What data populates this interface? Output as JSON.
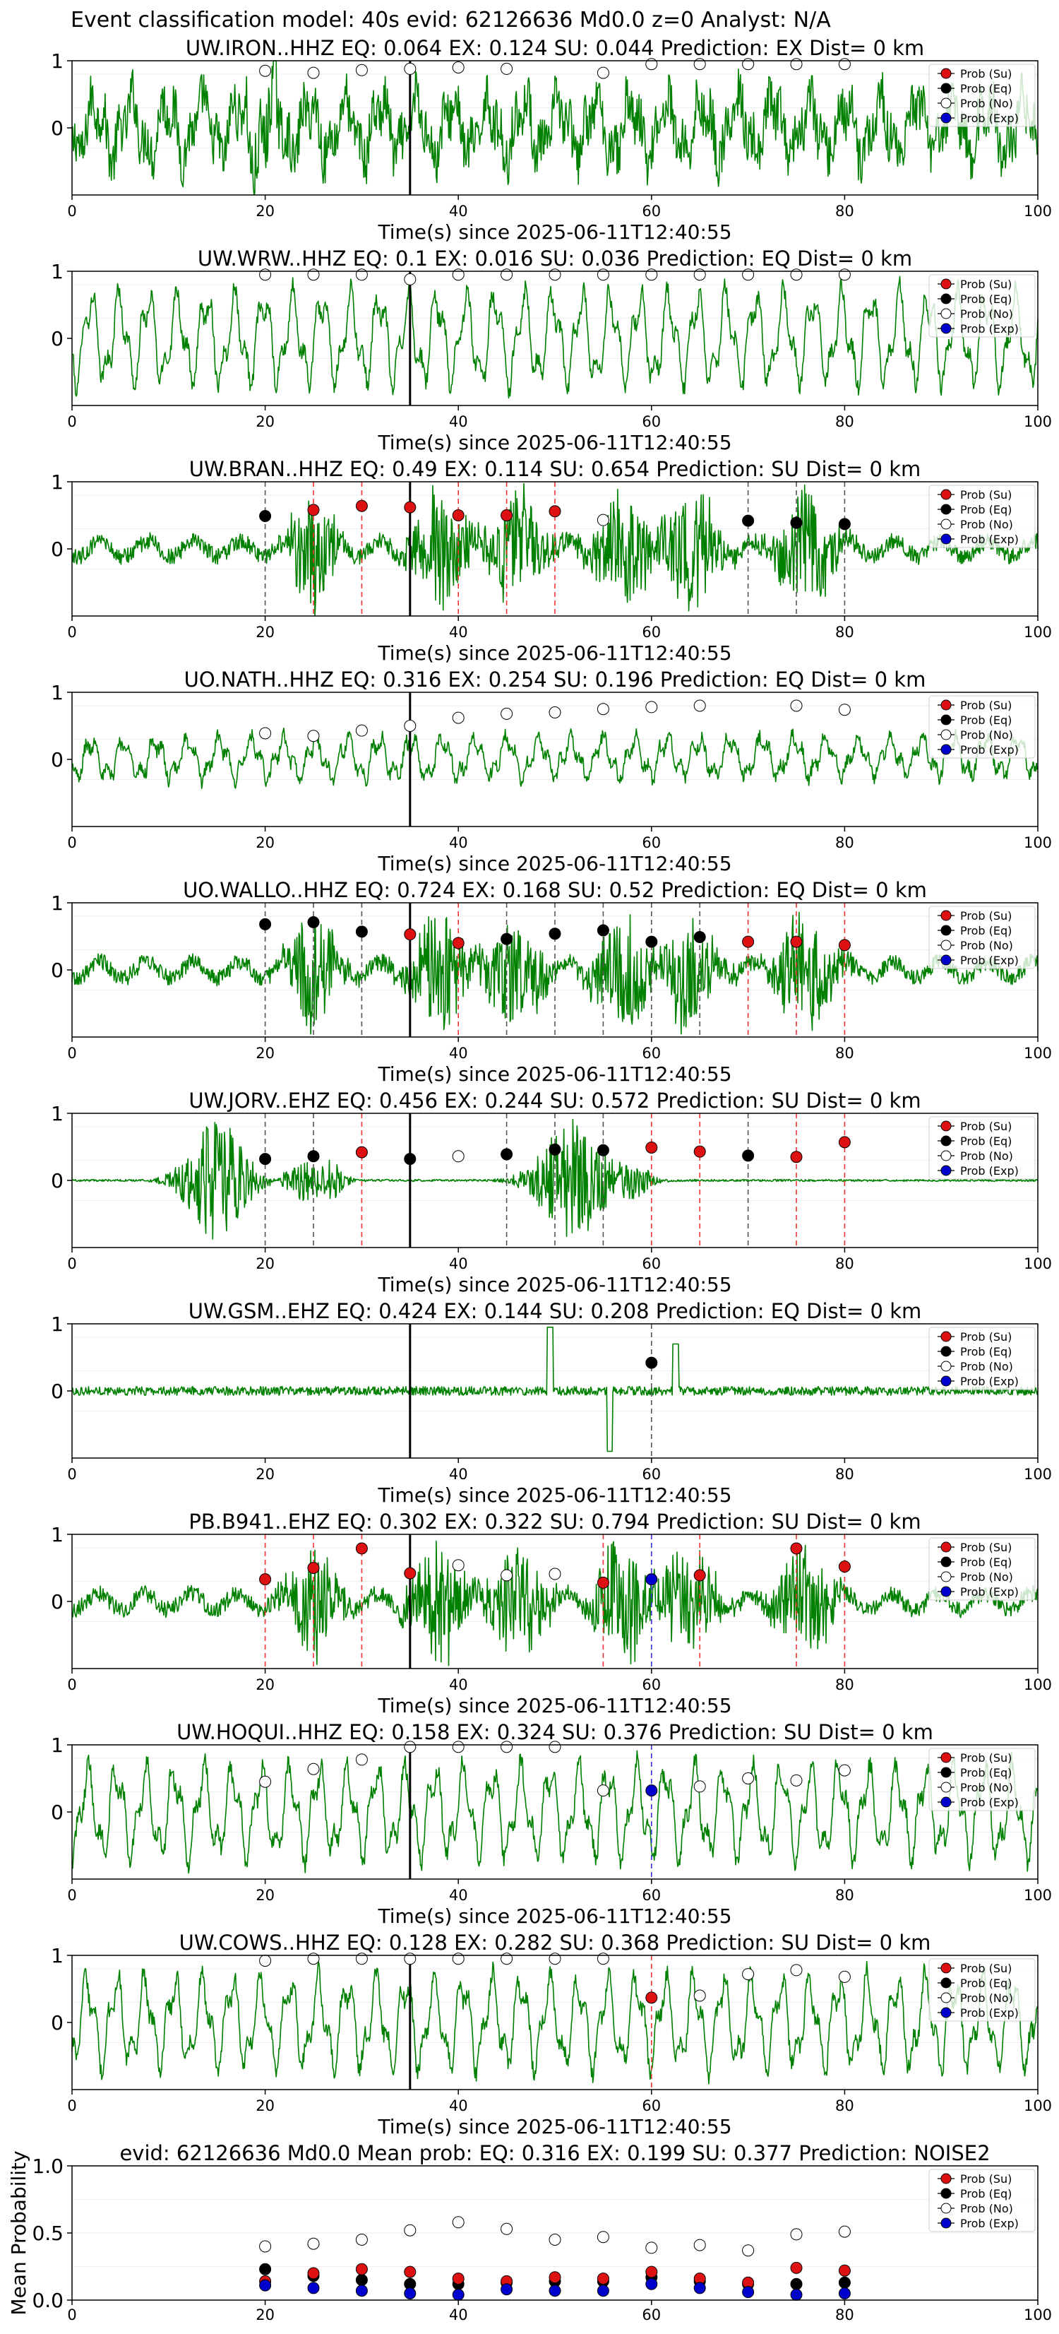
{
  "header": {
    "title": "Event classification model: 40s evid: 62126636 Md0.0 z=0 Analyst: N/A"
  },
  "legend_labels": [
    "Prob (Su)",
    "Prob (Eq)",
    "Prob (No)",
    "Prob (Exp)"
  ],
  "colors": {
    "su": "#dd1111",
    "eq": "#000000",
    "no": "#ffffff",
    "exp": "#0000cc",
    "waveform": "#008000",
    "su_line": "#ee3333",
    "eq_line": "#555555",
    "exp_line": "#3333dd"
  },
  "chart_data": [
    {
      "type": "line",
      "title": "UW.IRON..HHZ   EQ: 0.064  EX: 0.124  SU: 0.044   Prediction: EX    Dist= 0 km",
      "xlabel": "Time(s) since 2025-06-11T12:40:55",
      "xlim": [
        0,
        100
      ],
      "ylim": [
        -1,
        1
      ],
      "xticks": [
        "0",
        "20",
        "40",
        "60",
        "80",
        "100"
      ],
      "yticks": [
        "0",
        "1"
      ],
      "arrival_time": 35,
      "waveform_style": "noisy",
      "probs": [
        {
          "t": 20,
          "p": 0.85,
          "c": "no"
        },
        {
          "t": 25,
          "p": 0.82,
          "c": "no"
        },
        {
          "t": 30,
          "p": 0.86,
          "c": "no"
        },
        {
          "t": 35,
          "p": 0.88,
          "c": "no"
        },
        {
          "t": 40,
          "p": 0.9,
          "c": "no"
        },
        {
          "t": 45,
          "p": 0.88,
          "c": "no"
        },
        {
          "t": 55,
          "p": 0.82,
          "c": "no"
        },
        {
          "t": 60,
          "p": 0.95,
          "c": "no"
        },
        {
          "t": 65,
          "p": 0.95,
          "c": "no"
        },
        {
          "t": 70,
          "p": 0.95,
          "c": "no"
        },
        {
          "t": 75,
          "p": 0.95,
          "c": "no"
        },
        {
          "t": 80,
          "p": 0.95,
          "c": "no"
        }
      ],
      "markers": []
    },
    {
      "type": "line",
      "title": "UW.WRW..HHZ   EQ: 0.1  EX: 0.016  SU: 0.036   Prediction: EQ    Dist= 0 km",
      "xlabel": "Time(s) since 2025-06-11T12:40:55",
      "xlim": [
        0,
        100
      ],
      "ylim": [
        -1,
        1
      ],
      "xticks": [
        "0",
        "20",
        "40",
        "60",
        "80",
        "100"
      ],
      "yticks": [
        "0",
        "1"
      ],
      "arrival_time": 35,
      "waveform_style": "oscillating",
      "probs": [
        {
          "t": 20,
          "p": 0.95,
          "c": "no"
        },
        {
          "t": 25,
          "p": 0.95,
          "c": "no"
        },
        {
          "t": 30,
          "p": 0.95,
          "c": "no"
        },
        {
          "t": 35,
          "p": 0.88,
          "c": "no"
        },
        {
          "t": 40,
          "p": 0.95,
          "c": "no"
        },
        {
          "t": 45,
          "p": 0.95,
          "c": "no"
        },
        {
          "t": 50,
          "p": 0.95,
          "c": "no"
        },
        {
          "t": 55,
          "p": 0.95,
          "c": "no"
        },
        {
          "t": 60,
          "p": 0.95,
          "c": "no"
        },
        {
          "t": 65,
          "p": 0.95,
          "c": "no"
        },
        {
          "t": 70,
          "p": 0.95,
          "c": "no"
        },
        {
          "t": 75,
          "p": 0.95,
          "c": "no"
        },
        {
          "t": 80,
          "p": 0.95,
          "c": "no"
        }
      ],
      "markers": []
    },
    {
      "type": "line",
      "title": "UW.BRAN..HHZ   EQ: 0.49  EX: 0.114  SU: 0.654   Prediction: SU    Dist= 0 km",
      "xlabel": "Time(s) since 2025-06-11T12:40:55",
      "xlim": [
        0,
        100
      ],
      "ylim": [
        -1,
        1
      ],
      "xticks": [
        "0",
        "20",
        "40",
        "60",
        "80",
        "100"
      ],
      "yticks": [
        "0",
        "1"
      ],
      "arrival_time": 35,
      "waveform_style": "bursty",
      "probs": [
        {
          "t": 20,
          "p": 0.49,
          "c": "eq"
        },
        {
          "t": 25,
          "p": 0.58,
          "c": "su"
        },
        {
          "t": 30,
          "p": 0.64,
          "c": "su"
        },
        {
          "t": 35,
          "p": 0.62,
          "c": "su"
        },
        {
          "t": 40,
          "p": 0.5,
          "c": "su"
        },
        {
          "t": 45,
          "p": 0.5,
          "c": "su"
        },
        {
          "t": 50,
          "p": 0.56,
          "c": "su"
        },
        {
          "t": 55,
          "p": 0.43,
          "c": "no"
        },
        {
          "t": 70,
          "p": 0.42,
          "c": "eq"
        },
        {
          "t": 75,
          "p": 0.39,
          "c": "eq"
        },
        {
          "t": 80,
          "p": 0.37,
          "c": "eq"
        }
      ],
      "markers": [
        {
          "t": 20,
          "c": "eq"
        },
        {
          "t": 25,
          "c": "su"
        },
        {
          "t": 30,
          "c": "su"
        },
        {
          "t": 40,
          "c": "su"
        },
        {
          "t": 45,
          "c": "su"
        },
        {
          "t": 50,
          "c": "su"
        },
        {
          "t": 70,
          "c": "eq"
        },
        {
          "t": 75,
          "c": "eq"
        },
        {
          "t": 80,
          "c": "eq"
        }
      ]
    },
    {
      "type": "line",
      "title": "UO.NATH..HHZ   EQ: 0.316  EX: 0.254  SU: 0.196   Prediction: EQ    Dist= 0 km",
      "xlabel": "Time(s) since 2025-06-11T12:40:55",
      "xlim": [
        0,
        100
      ],
      "ylim": [
        -1,
        1
      ],
      "xticks": [
        "0",
        "20",
        "40",
        "60",
        "80",
        "100"
      ],
      "yticks": [
        "0",
        "1"
      ],
      "arrival_time": 35,
      "waveform_style": "wavy",
      "probs": [
        {
          "t": 20,
          "p": 0.39,
          "c": "no"
        },
        {
          "t": 25,
          "p": 0.35,
          "c": "no"
        },
        {
          "t": 30,
          "p": 0.43,
          "c": "no"
        },
        {
          "t": 35,
          "p": 0.5,
          "c": "no"
        },
        {
          "t": 40,
          "p": 0.62,
          "c": "no"
        },
        {
          "t": 45,
          "p": 0.68,
          "c": "no"
        },
        {
          "t": 50,
          "p": 0.7,
          "c": "no"
        },
        {
          "t": 55,
          "p": 0.75,
          "c": "no"
        },
        {
          "t": 60,
          "p": 0.78,
          "c": "no"
        },
        {
          "t": 65,
          "p": 0.8,
          "c": "no"
        },
        {
          "t": 75,
          "p": 0.8,
          "c": "no"
        },
        {
          "t": 80,
          "p": 0.74,
          "c": "no"
        }
      ],
      "markers": []
    },
    {
      "type": "line",
      "title": "UO.WALLO..HHZ   EQ: 0.724  EX: 0.168  SU: 0.52   Prediction: EQ    Dist= 0 km",
      "xlabel": "Time(s) since 2025-06-11T12:40:55",
      "xlim": [
        0,
        100
      ],
      "ylim": [
        -1,
        1
      ],
      "xticks": [
        "0",
        "20",
        "40",
        "60",
        "80",
        "100"
      ],
      "yticks": [
        "0",
        "1"
      ],
      "arrival_time": 35,
      "waveform_style": "bursty",
      "probs": [
        {
          "t": 20,
          "p": 0.68,
          "c": "eq"
        },
        {
          "t": 25,
          "p": 0.71,
          "c": "eq"
        },
        {
          "t": 30,
          "p": 0.57,
          "c": "eq"
        },
        {
          "t": 35,
          "p": 0.53,
          "c": "su"
        },
        {
          "t": 40,
          "p": 0.4,
          "c": "su"
        },
        {
          "t": 45,
          "p": 0.46,
          "c": "eq"
        },
        {
          "t": 50,
          "p": 0.54,
          "c": "eq"
        },
        {
          "t": 55,
          "p": 0.59,
          "c": "eq"
        },
        {
          "t": 60,
          "p": 0.42,
          "c": "eq"
        },
        {
          "t": 65,
          "p": 0.49,
          "c": "eq"
        },
        {
          "t": 70,
          "p": 0.42,
          "c": "su"
        },
        {
          "t": 75,
          "p": 0.42,
          "c": "su"
        },
        {
          "t": 80,
          "p": 0.37,
          "c": "su"
        }
      ],
      "markers": [
        {
          "t": 20,
          "c": "eq"
        },
        {
          "t": 25,
          "c": "eq"
        },
        {
          "t": 30,
          "c": "eq"
        },
        {
          "t": 40,
          "c": "su"
        },
        {
          "t": 45,
          "c": "eq"
        },
        {
          "t": 50,
          "c": "eq"
        },
        {
          "t": 55,
          "c": "eq"
        },
        {
          "t": 60,
          "c": "eq"
        },
        {
          "t": 65,
          "c": "eq"
        },
        {
          "t": 70,
          "c": "su"
        },
        {
          "t": 75,
          "c": "su"
        },
        {
          "t": 80,
          "c": "su"
        }
      ]
    },
    {
      "type": "line",
      "title": "UW.JORV..EHZ   EQ: 0.456  EX: 0.244  SU: 0.572   Prediction: SU    Dist= 0 km",
      "xlabel": "Time(s) since 2025-06-11T12:40:55",
      "xlim": [
        0,
        100
      ],
      "ylim": [
        -1,
        1
      ],
      "xticks": [
        "0",
        "20",
        "40",
        "60",
        "80",
        "100"
      ],
      "yticks": [
        "0",
        "1"
      ],
      "arrival_time": 35,
      "waveform_style": "quiet_bursts",
      "probs": [
        {
          "t": 20,
          "p": 0.32,
          "c": "eq"
        },
        {
          "t": 25,
          "p": 0.36,
          "c": "eq"
        },
        {
          "t": 30,
          "p": 0.42,
          "c": "su"
        },
        {
          "t": 35,
          "p": 0.32,
          "c": "eq"
        },
        {
          "t": 40,
          "p": 0.36,
          "c": "no"
        },
        {
          "t": 45,
          "p": 0.39,
          "c": "eq"
        },
        {
          "t": 50,
          "p": 0.46,
          "c": "eq"
        },
        {
          "t": 55,
          "p": 0.45,
          "c": "eq"
        },
        {
          "t": 60,
          "p": 0.49,
          "c": "su"
        },
        {
          "t": 65,
          "p": 0.43,
          "c": "su"
        },
        {
          "t": 70,
          "p": 0.37,
          "c": "eq"
        },
        {
          "t": 75,
          "p": 0.35,
          "c": "su"
        },
        {
          "t": 80,
          "p": 0.57,
          "c": "su"
        }
      ],
      "markers": [
        {
          "t": 20,
          "c": "eq"
        },
        {
          "t": 25,
          "c": "eq"
        },
        {
          "t": 30,
          "c": "su"
        },
        {
          "t": 45,
          "c": "eq"
        },
        {
          "t": 50,
          "c": "eq"
        },
        {
          "t": 55,
          "c": "eq"
        },
        {
          "t": 60,
          "c": "su"
        },
        {
          "t": 65,
          "c": "su"
        },
        {
          "t": 70,
          "c": "eq"
        },
        {
          "t": 75,
          "c": "su"
        },
        {
          "t": 80,
          "c": "su"
        }
      ]
    },
    {
      "type": "line",
      "title": "UW.GSM..EHZ   EQ: 0.424  EX: 0.144  SU: 0.208   Prediction: EQ    Dist= 0 km",
      "xlabel": "Time(s) since 2025-06-11T12:40:55",
      "xlim": [
        0,
        100
      ],
      "ylim": [
        -1,
        1
      ],
      "xticks": [
        "0",
        "20",
        "40",
        "60",
        "80",
        "100"
      ],
      "yticks": [
        "0",
        "1"
      ],
      "arrival_time": 35,
      "waveform_style": "low_noise",
      "probs": [
        {
          "t": 60,
          "p": 0.42,
          "c": "eq"
        }
      ],
      "markers": [
        {
          "t": 60,
          "c": "eq"
        }
      ]
    },
    {
      "type": "line",
      "title": "PB.B941..EHZ   EQ: 0.302  EX: 0.322  SU: 0.794   Prediction: SU    Dist= 0 km",
      "xlabel": "Time(s) since 2025-06-11T12:40:55",
      "xlim": [
        0,
        100
      ],
      "ylim": [
        -1,
        1
      ],
      "xticks": [
        "0",
        "20",
        "40",
        "60",
        "80",
        "100"
      ],
      "yticks": [
        "0",
        "1"
      ],
      "arrival_time": 35,
      "waveform_style": "bursty",
      "probs": [
        {
          "t": 20,
          "p": 0.33,
          "c": "su"
        },
        {
          "t": 25,
          "p": 0.5,
          "c": "su"
        },
        {
          "t": 30,
          "p": 0.79,
          "c": "su"
        },
        {
          "t": 35,
          "p": 0.42,
          "c": "su"
        },
        {
          "t": 40,
          "p": 0.54,
          "c": "no"
        },
        {
          "t": 45,
          "p": 0.39,
          "c": "no"
        },
        {
          "t": 50,
          "p": 0.41,
          "c": "no"
        },
        {
          "t": 55,
          "p": 0.28,
          "c": "su"
        },
        {
          "t": 60,
          "p": 0.33,
          "c": "exp"
        },
        {
          "t": 65,
          "p": 0.39,
          "c": "su"
        },
        {
          "t": 75,
          "p": 0.79,
          "c": "su"
        },
        {
          "t": 80,
          "p": 0.52,
          "c": "su"
        }
      ],
      "markers": [
        {
          "t": 20,
          "c": "su"
        },
        {
          "t": 25,
          "c": "su"
        },
        {
          "t": 30,
          "c": "su"
        },
        {
          "t": 55,
          "c": "su"
        },
        {
          "t": 60,
          "c": "exp"
        },
        {
          "t": 65,
          "c": "su"
        },
        {
          "t": 75,
          "c": "su"
        },
        {
          "t": 80,
          "c": "su"
        }
      ]
    },
    {
      "type": "line",
      "title": "UW.HOQUI..HHZ   EQ: 0.158  EX: 0.324  SU: 0.376   Prediction: SU    Dist= 0 km",
      "xlabel": "Time(s) since 2025-06-11T12:40:55",
      "xlim": [
        0,
        100
      ],
      "ylim": [
        -1,
        1
      ],
      "xticks": [
        "0",
        "20",
        "40",
        "60",
        "80",
        "100"
      ],
      "yticks": [
        "0",
        "1"
      ],
      "arrival_time": 35,
      "waveform_style": "oscillating",
      "probs": [
        {
          "t": 20,
          "p": 0.45,
          "c": "no"
        },
        {
          "t": 25,
          "p": 0.64,
          "c": "no"
        },
        {
          "t": 30,
          "p": 0.78,
          "c": "no"
        },
        {
          "t": 35,
          "p": 0.97,
          "c": "no"
        },
        {
          "t": 40,
          "p": 0.97,
          "c": "no"
        },
        {
          "t": 45,
          "p": 0.97,
          "c": "no"
        },
        {
          "t": 50,
          "p": 0.97,
          "c": "no"
        },
        {
          "t": 55,
          "p": 0.32,
          "c": "no"
        },
        {
          "t": 60,
          "p": 0.32,
          "c": "exp"
        },
        {
          "t": 65,
          "p": 0.38,
          "c": "no"
        },
        {
          "t": 70,
          "p": 0.5,
          "c": "no"
        },
        {
          "t": 75,
          "p": 0.47,
          "c": "no"
        },
        {
          "t": 80,
          "p": 0.62,
          "c": "no"
        }
      ],
      "markers": [
        {
          "t": 60,
          "c": "exp"
        }
      ]
    },
    {
      "type": "line",
      "title": "UW.COWS..HHZ   EQ: 0.128  EX: 0.282  SU: 0.368   Prediction: SU    Dist= 0 km",
      "xlabel": "Time(s) since 2025-06-11T12:40:55",
      "xlim": [
        0,
        100
      ],
      "ylim": [
        -1,
        1
      ],
      "xticks": [
        "0",
        "20",
        "40",
        "60",
        "80",
        "100"
      ],
      "yticks": [
        "0",
        "1"
      ],
      "arrival_time": 35,
      "waveform_style": "oscillating",
      "probs": [
        {
          "t": 20,
          "p": 0.92,
          "c": "no"
        },
        {
          "t": 25,
          "p": 0.95,
          "c": "no"
        },
        {
          "t": 30,
          "p": 0.95,
          "c": "no"
        },
        {
          "t": 35,
          "p": 0.95,
          "c": "no"
        },
        {
          "t": 40,
          "p": 0.95,
          "c": "no"
        },
        {
          "t": 45,
          "p": 0.95,
          "c": "no"
        },
        {
          "t": 50,
          "p": 0.95,
          "c": "no"
        },
        {
          "t": 55,
          "p": 0.95,
          "c": "no"
        },
        {
          "t": 60,
          "p": 0.37,
          "c": "su"
        },
        {
          "t": 65,
          "p": 0.4,
          "c": "no"
        },
        {
          "t": 70,
          "p": 0.72,
          "c": "no"
        },
        {
          "t": 75,
          "p": 0.78,
          "c": "no"
        },
        {
          "t": 80,
          "p": 0.68,
          "c": "no"
        }
      ],
      "markers": [
        {
          "t": 60,
          "c": "su"
        }
      ]
    },
    {
      "type": "scatter",
      "title": "evid: 62126636   Md0.0   Mean prob:   EQ: 0.316  EX: 0.199  SU: 0.377   Prediction: NOISE2",
      "ylabel": "Mean Probability",
      "xlim": [
        0,
        100
      ],
      "ylim": [
        0,
        1
      ],
      "xticks": [
        "0",
        "20",
        "40",
        "60",
        "80",
        "100"
      ],
      "yticks": [
        "0.0",
        "0.5",
        "1.0"
      ],
      "x": [
        20,
        25,
        30,
        35,
        40,
        45,
        50,
        55,
        60,
        65,
        70,
        75,
        80
      ],
      "series": [
        {
          "name": "Prob (No)",
          "c": "no",
          "values": [
            0.4,
            0.42,
            0.45,
            0.52,
            0.58,
            0.53,
            0.45,
            0.47,
            0.39,
            0.41,
            0.37,
            0.49,
            0.51
          ]
        },
        {
          "name": "Prob (Eq)",
          "c": "eq",
          "values": [
            0.23,
            0.18,
            0.15,
            0.12,
            0.12,
            0.13,
            0.14,
            0.14,
            0.17,
            0.14,
            0.12,
            0.12,
            0.13
          ]
        },
        {
          "name": "Prob (Su)",
          "c": "su",
          "values": [
            0.14,
            0.2,
            0.23,
            0.21,
            0.16,
            0.14,
            0.17,
            0.16,
            0.21,
            0.16,
            0.13,
            0.24,
            0.22
          ]
        },
        {
          "name": "Prob (Exp)",
          "c": "exp",
          "values": [
            0.11,
            0.09,
            0.07,
            0.05,
            0.04,
            0.08,
            0.07,
            0.07,
            0.12,
            0.09,
            0.06,
            0.04,
            0.05
          ]
        }
      ]
    }
  ]
}
